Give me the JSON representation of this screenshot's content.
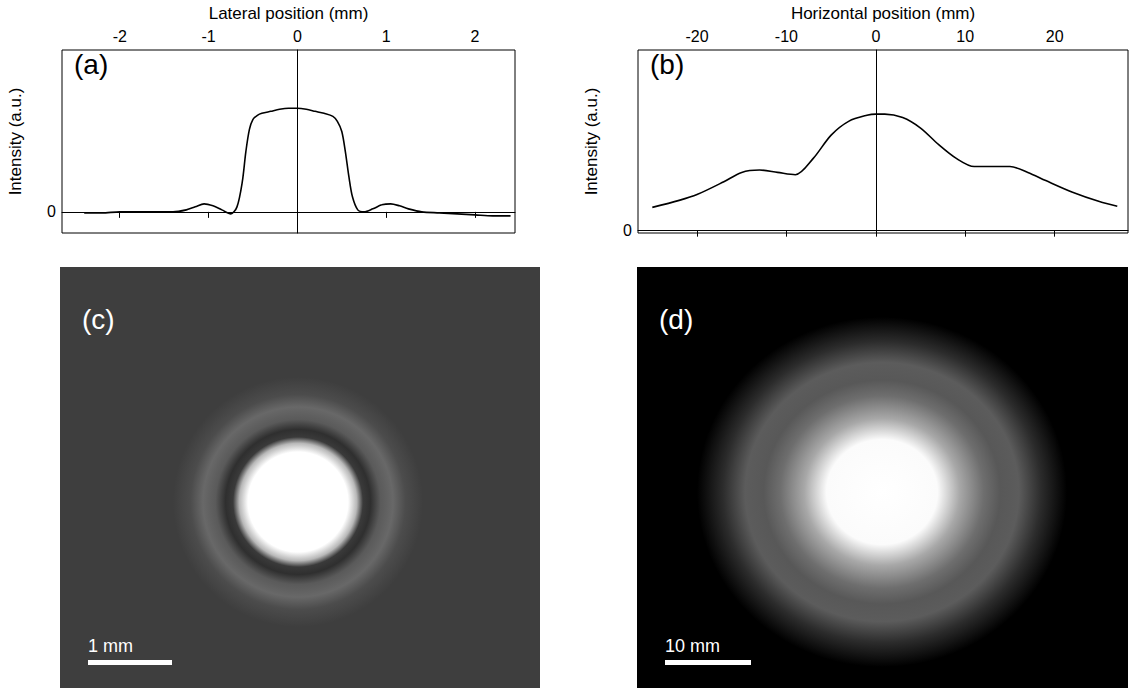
{
  "chart_data": [
    {
      "type": "line",
      "title": "(a)",
      "x_label": "Lateral position (mm)",
      "y_label": "Intensity (a.u.)",
      "color": "#000000",
      "x": [
        -2.4,
        -2.2,
        -2.0,
        -1.8,
        -1.6,
        -1.4,
        -1.25,
        -1.15,
        -1.05,
        -0.95,
        -0.85,
        -0.75,
        -0.68,
        -0.62,
        -0.58,
        -0.54,
        -0.5,
        -0.45,
        -0.4,
        -0.3,
        -0.2,
        -0.1,
        0,
        0.1,
        0.2,
        0.3,
        0.4,
        0.45,
        0.5,
        0.54,
        0.58,
        0.62,
        0.68,
        0.75,
        0.85,
        0.95,
        1.05,
        1.15,
        1.25,
        1.4,
        1.6,
        1.8,
        2.0,
        2.2,
        2.4
      ],
      "values": [
        -0.01,
        -0.01,
        0,
        0,
        0,
        0,
        0.02,
        0.05,
        0.08,
        0.06,
        0.02,
        -0.02,
        0.05,
        0.3,
        0.6,
        0.82,
        0.92,
        0.96,
        0.98,
        1.0,
        1.02,
        1.03,
        1.03,
        1.02,
        1.0,
        0.98,
        0.95,
        0.9,
        0.8,
        0.6,
        0.35,
        0.15,
        0.02,
        0,
        0.03,
        0.07,
        0.08,
        0.06,
        0.03,
        0,
        -0.01,
        -0.02,
        -0.03,
        -0.04,
        -0.04
      ],
      "xlim": [
        -2.65,
        2.45
      ],
      "xticks": [
        -2,
        -1,
        0,
        1,
        2
      ],
      "ylim": [
        -0.21,
        1.61
      ],
      "yticks": [
        0
      ],
      "grid": false
    },
    {
      "type": "line",
      "title": "(b)",
      "x_label": "Horizontal position (mm)",
      "y_label": "Intensity (a.u.)",
      "color": "#000000",
      "x": [
        -25,
        -22,
        -20,
        -17,
        -15,
        -13,
        -11,
        -9,
        -7,
        -5,
        -3,
        -1,
        0,
        1,
        3,
        5,
        7,
        9,
        11,
        13,
        15,
        17,
        19,
        22,
        25,
        27
      ],
      "values": [
        0.2,
        0.26,
        0.31,
        0.42,
        0.5,
        0.52,
        0.5,
        0.48,
        0.62,
        0.82,
        0.94,
        0.99,
        1.0,
        1.0,
        0.97,
        0.88,
        0.74,
        0.62,
        0.55,
        0.55,
        0.55,
        0.5,
        0.43,
        0.33,
        0.25,
        0.21
      ],
      "xlim": [
        -26.6,
        28.2
      ],
      "xticks": [
        -20,
        -10,
        0,
        10,
        20
      ],
      "ylim": [
        -0.02,
        1.55
      ],
      "yticks": [
        0
      ],
      "grid": false
    },
    {
      "type": "image",
      "title": "(c)",
      "scale_bar": "1 mm"
    },
    {
      "type": "image",
      "title": "(d)",
      "scale_bar": "10 mm"
    }
  ]
}
